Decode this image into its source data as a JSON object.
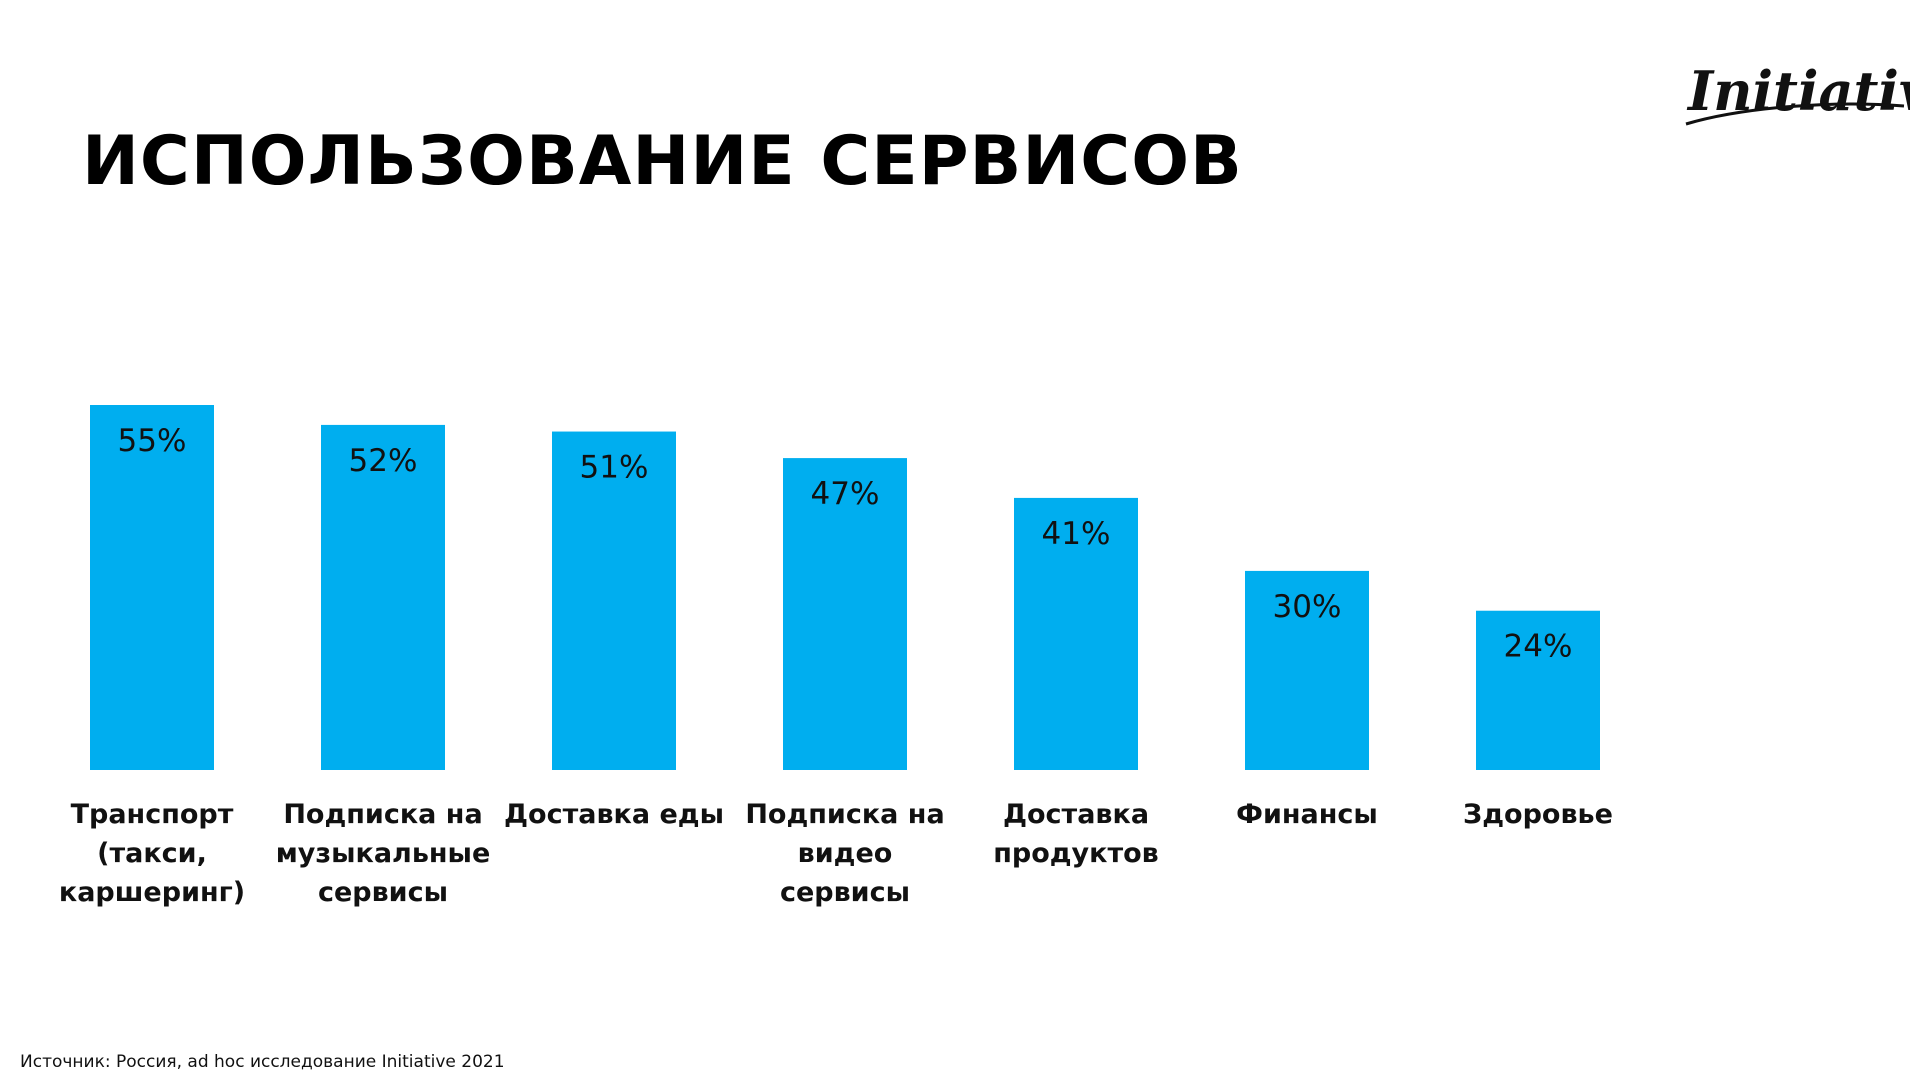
{
  "header": {
    "title": "ИСПОЛЬЗОВАНИЕ СЕРВИСОВ",
    "logo_text": "Initiative"
  },
  "footer": {
    "source": "Источник:  Россия, ad hoc исследование Initiative 2021"
  },
  "colors": {
    "bar": "#00AEEF",
    "text": "#111111"
  },
  "chart_data": {
    "type": "bar",
    "title": "ИСПОЛЬЗОВАНИЕ СЕРВИСОВ",
    "xlabel": "",
    "ylabel": "",
    "grid": false,
    "legend": "none",
    "ylim": [
      0,
      55
    ],
    "categories": [
      "Транспорт (такси, каршеринг)",
      "Подписка на музыкальные сервисы",
      "Доставка еды",
      "Подписка на видео сервисы",
      "Доставка продуктов",
      "Финансы",
      "Здоровье"
    ],
    "category_lines": [
      [
        "Транспорт",
        "(такси,",
        "каршеринг)"
      ],
      [
        "Подписка на",
        "музыкальные",
        "сервисы"
      ],
      [
        "Доставка еды"
      ],
      [
        "Подписка на",
        "видео сервисы"
      ],
      [
        "Доставка",
        "продуктов"
      ],
      [
        "Финансы"
      ],
      [
        "Здоровье"
      ]
    ],
    "values": [
      55,
      52,
      51,
      47,
      41,
      30,
      24
    ],
    "value_labels": [
      "55%",
      "52%",
      "51%",
      "47%",
      "41%",
      "30%",
      "24%"
    ]
  }
}
